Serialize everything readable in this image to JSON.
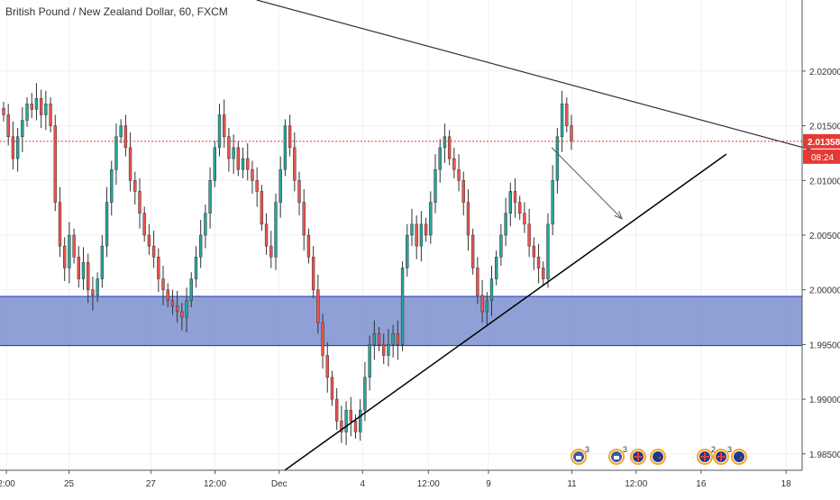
{
  "title": "British Pound / New Zealand Dollar, 60, FXCM",
  "chart_data": {
    "type": "candlestick",
    "title": "British Pound / New Zealand Dollar, 60, FXCM",
    "ylim": [
      1.9835,
      2.0265
    ],
    "y_ticks": [
      "2.02000",
      "2.01500",
      "2.01000",
      "2.00500",
      "2.00000",
      "1.99500",
      "1.99000",
      "1.98500"
    ],
    "x_ticks": [
      "2:00",
      "25",
      "27",
      "12:00",
      "Dec",
      "4",
      "12:00",
      "9",
      "11",
      "12:00",
      "16",
      "18"
    ],
    "current_price": "2.01358",
    "countdown": "08:24",
    "zone": {
      "top": 1.9994,
      "bottom": 1.9949
    },
    "resistance_line": {
      "from": [
        0.32,
        2.0265
      ],
      "to": [
        1.0,
        2.0121
      ]
    },
    "support_line": {
      "from": [
        0.355,
        1.9835
      ],
      "to": [
        0.865,
        2.0124
      ]
    },
    "projection_arrow": {
      "from": [
        0.69,
        2.013
      ],
      "to": [
        0.745,
        2.0065
      ]
    },
    "closes": [
      2.016,
      2.014,
      2.012,
      2.014,
      2.0155,
      2.017,
      2.0165,
      2.0175,
      2.016,
      2.017,
      2.015,
      2.008,
      2.004,
      2.002,
      2.005,
      2.003,
      2.001,
      2.0025,
      2.0,
      1.9995,
      2.001,
      2.004,
      2.008,
      2.011,
      2.014,
      2.015,
      2.013,
      2.01,
      2.009,
      2.007,
      2.005,
      2.004,
      2.003,
      2.001,
      2.0,
      1.999,
      1.9985,
      1.998,
      1.9975,
      1.999,
      2.001,
      2.003,
      2.005,
      2.007,
      2.01,
      2.013,
      2.016,
      2.014,
      2.012,
      2.013,
      2.011,
      2.012,
      2.011,
      2.01,
      2.009,
      2.006,
      2.004,
      2.003,
      2.008,
      2.011,
      2.015,
      2.013,
      2.01,
      2.008,
      2.005,
      2.003,
      2.0,
      1.997,
      1.994,
      1.992,
      1.99,
      1.988,
      1.987,
      1.989,
      1.988,
      1.987,
      1.989,
      1.992,
      1.995,
      1.996,
      1.995,
      1.994,
      1.995,
      1.996,
      1.995,
      2.002,
      2.005,
      2.006,
      2.004,
      2.006,
      2.005,
      2.008,
      2.011,
      2.013,
      2.014,
      2.012,
      2.011,
      2.01,
      2.008,
      2.005,
      2.002,
      1.9995,
      1.998,
      1.999,
      2.001,
      2.003,
      2.005,
      2.007,
      2.009,
      2.008,
      2.007,
      2.006,
      2.004,
      2.003,
      2.002,
      2.001,
      2.006,
      2.01,
      2.014,
      2.017,
      2.015,
      2.0136
    ]
  },
  "events": [
    {
      "icon": "calendar-event-icon",
      "count": "3"
    },
    {
      "icon": "calendar-event-icon",
      "count": "3"
    },
    {
      "icon": "uk-flag-icon",
      "count": ""
    },
    {
      "icon": "nz-flag-icon",
      "count": ""
    },
    {
      "icon": "uk-flag-icon",
      "count": "2"
    },
    {
      "icon": "uk-flag-icon",
      "count": "3"
    },
    {
      "icon": "nz-flag-icon",
      "count": ""
    }
  ],
  "colors": {
    "up": "#26a69a",
    "down": "#ef5350",
    "zone_fill": "#7b8fcf",
    "zone_border": "#1a3bb5",
    "price_line": "#e53935",
    "trend_line": "#000000",
    "resistance_line": "#333333",
    "grid": "#eef0f3"
  }
}
